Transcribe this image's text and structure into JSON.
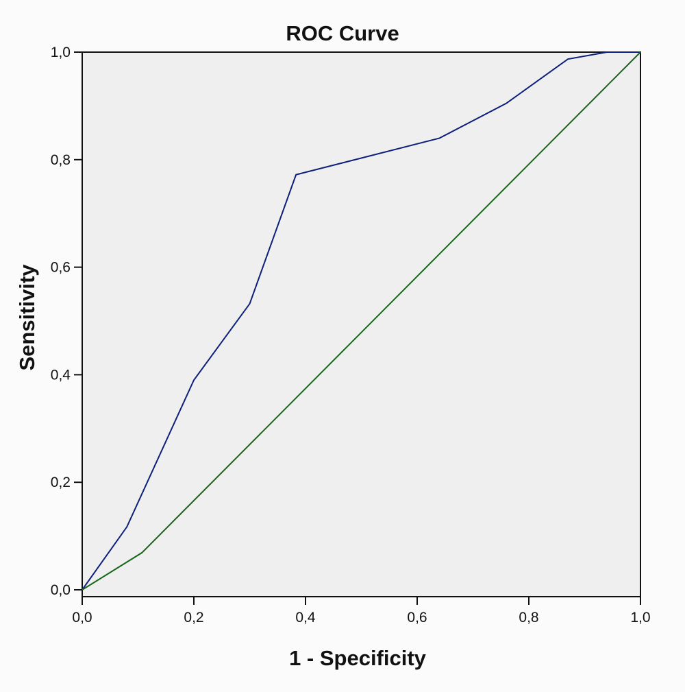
{
  "chart_data": {
    "type": "line",
    "title": "ROC Curve",
    "xlabel": "1 - Specificity",
    "ylabel": "Sensitivity",
    "xlim": [
      0,
      1
    ],
    "ylim": [
      0,
      1
    ],
    "grid": false,
    "x_ticks": [
      "0,0",
      "0,2",
      "0,4",
      "0,6",
      "0,8",
      "1,0"
    ],
    "y_ticks": [
      "0,0",
      "0,2",
      "0,4",
      "0,6",
      "0,8",
      "1,0"
    ],
    "tick_values": [
      0,
      0.2,
      0.4,
      0.6,
      0.8,
      1.0
    ],
    "background_color": "#efefef",
    "series": [
      {
        "color": "#0d1f7a",
        "x": [
          0,
          0.08,
          0.2,
          0.3,
          0.383,
          0.64,
          0.76,
          0.87,
          0.94,
          1.0
        ],
        "y": [
          0,
          0.117,
          0.39,
          0.532,
          0.772,
          0.84,
          0.905,
          0.987,
          1.0,
          1.0
        ]
      },
      {
        "color": "#16661a",
        "x": [
          0,
          0.107,
          1.0
        ],
        "y": [
          0,
          0.069,
          1.0
        ]
      }
    ]
  }
}
